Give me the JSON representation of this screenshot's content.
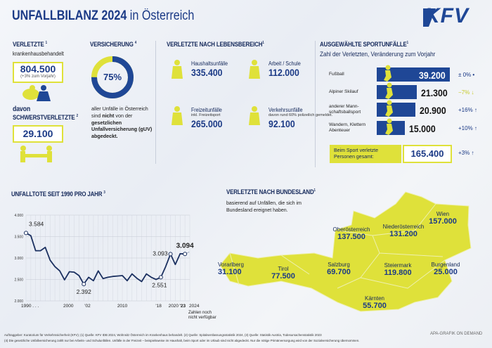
{
  "header": {
    "title_bold": "UNFALLBILANZ 2024",
    "title_rest": "in Österreich",
    "logo": "KFV"
  },
  "colors": {
    "navy": "#1f4796",
    "yellow": "#dfe13a",
    "dark": "#14285a"
  },
  "injured": {
    "title": "VERLETZTE",
    "note": "1",
    "subtitle": "krankenhausbehandelt",
    "value": "804.500",
    "change": "(+3% zum Vorjahr)",
    "severe_prefix": "davon",
    "severe_title": "SCHWERSTVERLETZTE",
    "severe_note": "2",
    "severe_value": "29.100"
  },
  "insurance": {
    "title": "VERSICHERUNG",
    "note": "4",
    "percent": 75,
    "percent_label": "75%",
    "text1": "aller Unfälle in Österreich sind",
    "text_bold1": "nicht",
    "text2": "von der",
    "text_bold2": "gesetzlichen Unfallversicherung (gUV) abgedeckt."
  },
  "life": {
    "title": "VERLETZTE NACH LEBENSBEREICH",
    "note": "1",
    "items": [
      {
        "label": "Haushaltsunfälle",
        "sub": "",
        "value": "335.400",
        "icon": "cleaning-person-icon"
      },
      {
        "label": "Arbeit / Schule",
        "sub": "",
        "value": "112.000",
        "icon": "teacher-board-icon"
      },
      {
        "label": "Freizeitunfälle",
        "sub": "inkl. Freizeitsport",
        "value": "265.000",
        "icon": "bmx-cyclist-icon"
      },
      {
        "label": "Verkehrsunfälle",
        "sub": "davon rund 60% polizeilich gemeldet.",
        "value": "92.100",
        "icon": "car-icon"
      }
    ]
  },
  "sports": {
    "title": "AUSGEWÄHLTE SPORTUNFÄLLE",
    "note": "1",
    "subtitle": "Zahl der Verletzten, Veränderung zum Vorjahr",
    "rows": [
      {
        "label": "Fußball",
        "value": "39.200",
        "count": 39200,
        "change": "± 0%",
        "trend": "•",
        "icon": "football-player-icon"
      },
      {
        "label": "Alpiner Skilauf",
        "value": "21.300",
        "count": 21300,
        "change": "−7%",
        "trend": "↓",
        "icon": "skier-icon"
      },
      {
        "label": "anderer Mann-schaftsballsport",
        "value": "20.900",
        "count": 20900,
        "change": "+16%",
        "trend": "↑",
        "icon": "ball-player-icon"
      },
      {
        "label": "Wandern, Klettern Abenteuer",
        "value": "15.000",
        "count": 15000,
        "change": "+10%",
        "trend": "↑",
        "icon": "hiker-icon"
      }
    ],
    "total_label": "Beim Sport verletzte Personen gesamt:",
    "total_value": "165.400",
    "total_change": "+3%",
    "total_trend": "↑"
  },
  "chart_data": {
    "type": "line",
    "title": "UNFALLTOTE SEIT 1990 PRO JAHR",
    "title_note": "3",
    "x": [
      1990,
      1991,
      1992,
      1993,
      1994,
      1995,
      1996,
      1997,
      1998,
      1999,
      2000,
      2001,
      2002,
      2003,
      2004,
      2005,
      2006,
      2007,
      2008,
      2009,
      2010,
      2011,
      2012,
      2013,
      2014,
      2015,
      2016,
      2017,
      2018,
      2019,
      2020,
      2021,
      2022,
      2023
    ],
    "y": [
      3584,
      3520,
      3170,
      3170,
      3250,
      2950,
      2800,
      2700,
      2490,
      2680,
      2670,
      2590,
      2392,
      2550,
      2470,
      2700,
      2520,
      2550,
      2570,
      2580,
      2590,
      2470,
      2630,
      2530,
      2450,
      2630,
      2550,
      2500,
      2551,
      2800,
      3093,
      2850,
      3100,
      3094
    ],
    "xlim": [
      1990,
      2024
    ],
    "ylim": [
      2000,
      4000
    ],
    "yticks": [
      "2.000",
      "2.500",
      "3.000",
      "3.500",
      "4.000"
    ],
    "xticks": [
      {
        "year": 1990,
        "label": "1990 . . ."
      },
      {
        "year": 2000,
        "label": "2000"
      },
      {
        "year": 2002,
        "label": "'02"
      },
      {
        "year": 2010,
        "label": "2010"
      },
      {
        "year": 2018,
        "label": "'18"
      },
      {
        "year": 2020,
        "label": "2020"
      },
      {
        "year": 2023,
        "label": "'23"
      },
      {
        "year": 2024,
        "label": "2024"
      }
    ],
    "annotations": [
      {
        "year": 1990,
        "label": "3.584"
      },
      {
        "year": 2002,
        "label": "2.392"
      },
      {
        "year": 2018,
        "label": "2.551"
      },
      {
        "year": 2020,
        "label": "3.093"
      },
      {
        "year": 2023,
        "label": "3.094"
      }
    ],
    "note_2024": "Zahlen noch nicht verfügbar",
    "grid": true
  },
  "states": {
    "title": "VERLETZTE NACH BUNDESLAND",
    "note": "1",
    "subtitle": "basierend auf Unfällen, die sich im Bundesland ereignet haben.",
    "items": [
      {
        "name": "Wien",
        "value": "157.000"
      },
      {
        "name": "Niederösterreich",
        "value": "131.200"
      },
      {
        "name": "Oberösterreich",
        "value": "137.500"
      },
      {
        "name": "Vorarlberg",
        "value": "31.100"
      },
      {
        "name": "Tirol",
        "value": "77.500"
      },
      {
        "name": "Salzburg",
        "value": "69.700"
      },
      {
        "name": "Steiermark",
        "value": "119.800"
      },
      {
        "name": "Burgenland",
        "value": "25.000"
      },
      {
        "name": "Kärnten",
        "value": "55.700"
      }
    ]
  },
  "footer": {
    "line1": "Auftraggeber: Kuratorium für Verkehrssicherheit (KFV); (1) Quelle: KFV IDB 2024, Wohnsitz Österreich im Krankenhaus behandelt. (2) Quelle: Spitalsentlassungsstatistik 2024, (3) Quelle: Statistik Austria, Todesursachenstatistik 2023",
    "line2": "(4) Die gesetzliche Unfallversicherung zahlt nur bei Arbeits- und Schulunfällen. Unfälle in der Freizeit – beispielsweise im Haushalt, beim Sport oder im Urlaub sind nicht abgedeckt. Nur die nötige Primärversorgung wird von der Sozialversicherung übernommen.",
    "credit": "APA-GRAFIK ON DEMAND"
  }
}
